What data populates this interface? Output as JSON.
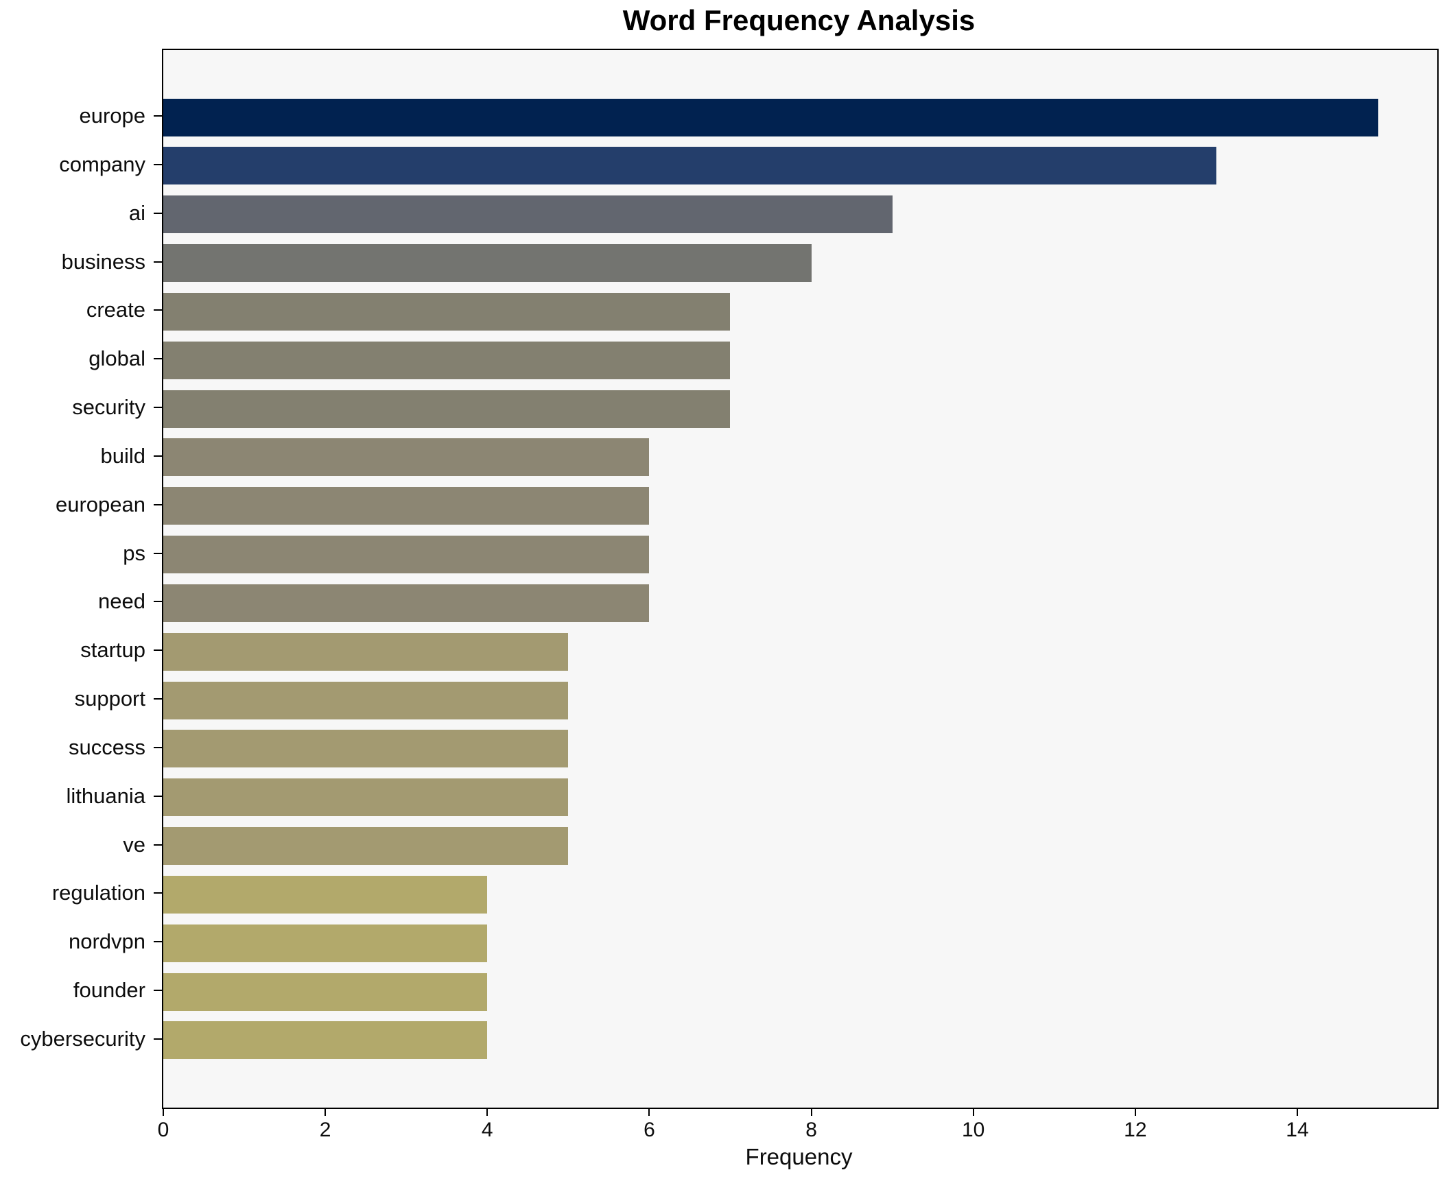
{
  "figure": {
    "title": "Word Frequency Analysis",
    "xlabel": "Frequency"
  },
  "chart_data": {
    "type": "bar",
    "orientation": "horizontal",
    "title": "Word Frequency Analysis",
    "xlabel": "Frequency",
    "ylabel": "",
    "categories": [
      "europe",
      "company",
      "ai",
      "business",
      "create",
      "global",
      "security",
      "build",
      "european",
      "ps",
      "need",
      "startup",
      "support",
      "success",
      "lithuania",
      "ve",
      "regulation",
      "nordvpn",
      "founder",
      "cybersecurity"
    ],
    "values": [
      15,
      13,
      9,
      8,
      7,
      7,
      7,
      6,
      6,
      6,
      6,
      5,
      5,
      5,
      5,
      5,
      4,
      4,
      4,
      4
    ],
    "bar_colors": [
      "#012250",
      "#243e6b",
      "#62666f",
      "#737470",
      "#838070",
      "#838070",
      "#838070",
      "#8c8673",
      "#8c8673",
      "#8c8673",
      "#8c8673",
      "#a39a71",
      "#a39a71",
      "#a39a71",
      "#a39a71",
      "#a39a71",
      "#b2a96b",
      "#b2a96b",
      "#b2a96b",
      "#b2a96b"
    ],
    "xticks": [
      0,
      2,
      4,
      6,
      8,
      10,
      12,
      14
    ],
    "xlim": [
      0,
      15.73
    ],
    "grid": false,
    "legend": null,
    "figure_bg": "#ffffff",
    "plot_bg": "#f7f7f7",
    "spine_color": "#000000",
    "text_color": "#0d0d0d"
  }
}
